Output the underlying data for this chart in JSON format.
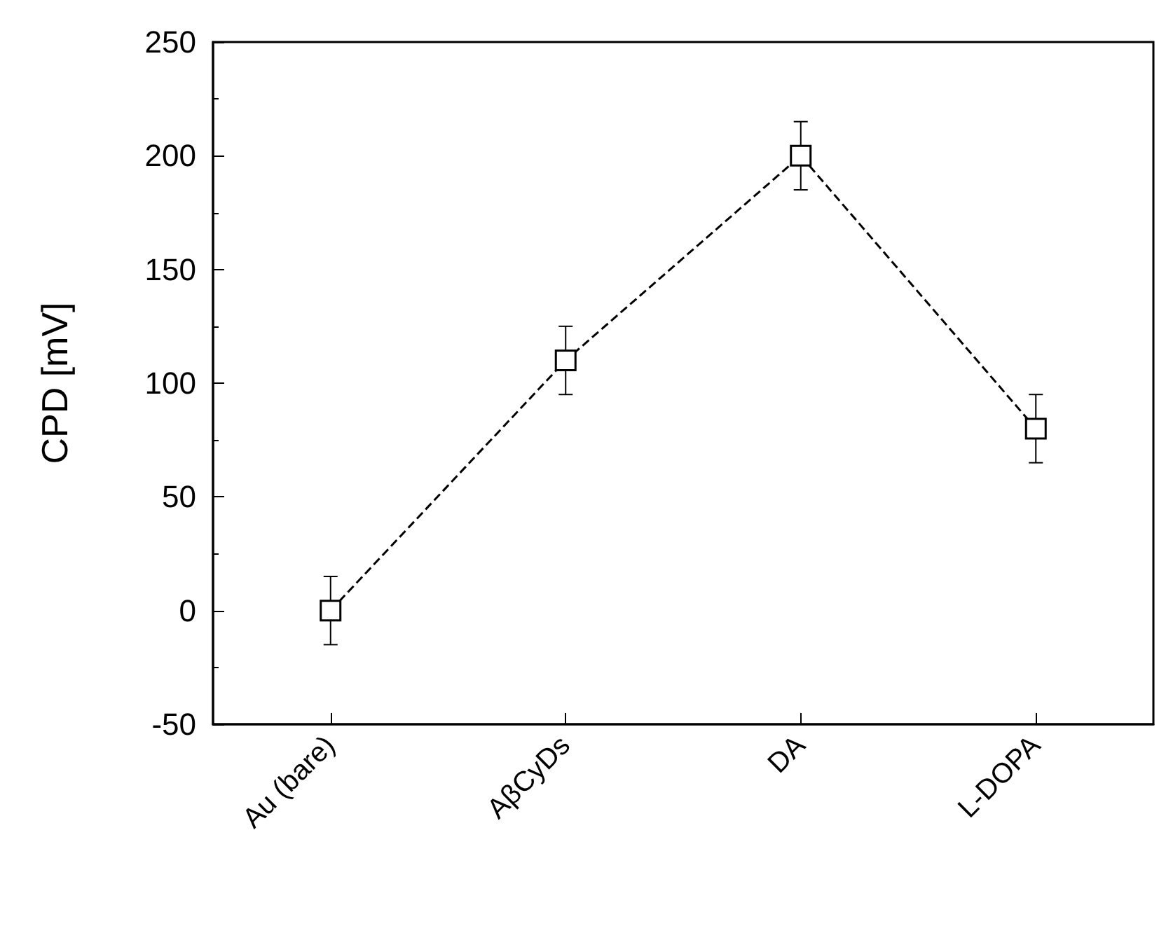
{
  "chart_data": {
    "type": "line",
    "ylabel": "CPD [mV]",
    "categories": [
      "Au (bare)",
      "AβCyDs",
      "DA",
      "L-DOPA"
    ],
    "series": [
      {
        "color": "#000000",
        "values": [
          0,
          110,
          200,
          80
        ],
        "errors": [
          15,
          15,
          15,
          15
        ]
      }
    ],
    "ylim": [
      -50,
      250
    ],
    "yticks": [
      -50,
      0,
      50,
      100,
      150,
      200,
      250
    ],
    "marker": "square",
    "line_style": "dashed"
  }
}
